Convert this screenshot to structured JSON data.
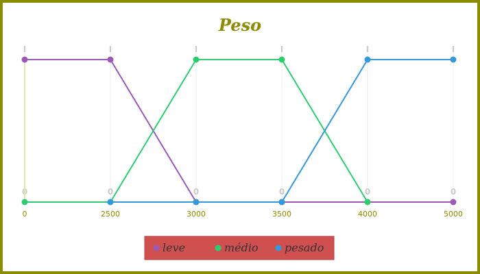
{
  "chart_data": {
    "type": "line",
    "title": "Peso",
    "xlabel": "",
    "ylabel": "",
    "x": [
      0,
      2500,
      3000,
      3500,
      4000,
      5000
    ],
    "x_tick_labels": [
      "0",
      "2500",
      "3000",
      "3500",
      "4000",
      "5000"
    ],
    "ylim": [
      0,
      1
    ],
    "y_top_tick_label": "I",
    "y_bottom_tick_label": "0",
    "grid": true,
    "legend_position": "bottom-center",
    "series": [
      {
        "name": "leve",
        "color": "#9b59b6",
        "values": [
          1,
          1,
          0,
          0,
          0,
          0
        ]
      },
      {
        "name": "médio",
        "color": "#2ecc71",
        "values": [
          0,
          0,
          1,
          1,
          0,
          null
        ]
      },
      {
        "name": "pesado",
        "color": "#3498db",
        "values": [
          null,
          0,
          0,
          0,
          1,
          1
        ]
      }
    ],
    "colors": {
      "border": "#8c8c00",
      "title": "#8c8c00",
      "tick_labels": "#8c8c00",
      "grid": "#ececec",
      "tick_marks": "#cccccc",
      "legend_background": "#d05050",
      "legend_text": "#333333"
    }
  }
}
